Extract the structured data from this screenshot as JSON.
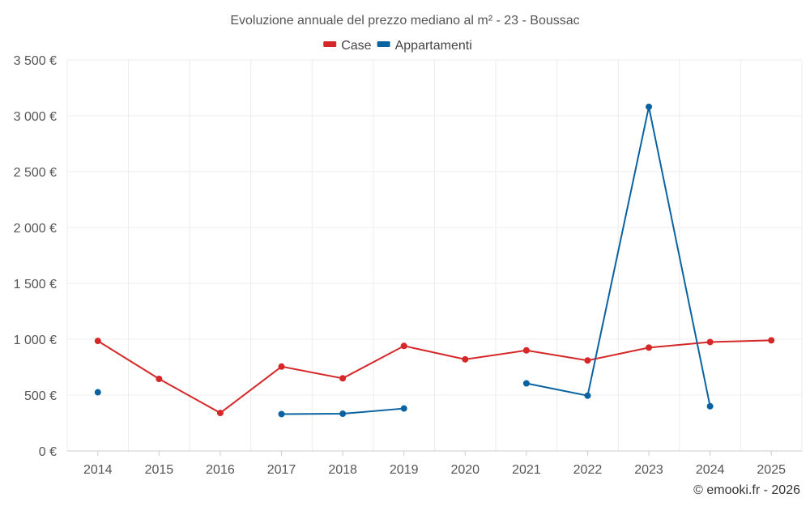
{
  "chart_data": {
    "type": "line",
    "title": "Evoluzione annuale del prezzo mediano al m² - 23 - Boussac",
    "categories": [
      "2014",
      "2015",
      "2016",
      "2017",
      "2018",
      "2019",
      "2020",
      "2021",
      "2022",
      "2023",
      "2024",
      "2025"
    ],
    "ylim": [
      0,
      3500
    ],
    "yticks": [
      {
        "value": 0,
        "label": "0 €"
      },
      {
        "value": 500,
        "label": "500 €"
      },
      {
        "value": 1000,
        "label": "1 000 €"
      },
      {
        "value": 1500,
        "label": "1 500 €"
      },
      {
        "value": 2000,
        "label": "2 000 €"
      },
      {
        "value": 2500,
        "label": "2 500 €"
      },
      {
        "value": 3000,
        "label": "3 000 €"
      },
      {
        "value": 3500,
        "label": "3 500 €"
      }
    ],
    "grid": true,
    "legend_position": "top-center",
    "series": [
      {
        "name": "Case",
        "color": "#d62728",
        "values": [
          985,
          645,
          340,
          755,
          650,
          940,
          820,
          900,
          810,
          925,
          975,
          990
        ]
      },
      {
        "name": "Appartamenti",
        "color": "#0a63a0",
        "values": [
          525,
          null,
          null,
          330,
          333,
          380,
          null,
          605,
          495,
          3080,
          400,
          null
        ]
      }
    ],
    "credit": "© emooki.fr - 2026"
  }
}
